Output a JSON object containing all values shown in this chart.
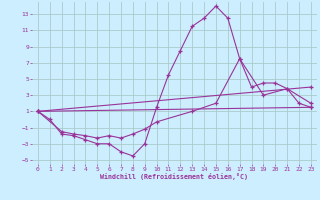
{
  "xlabel": "Windchill (Refroidissement éolien,°C)",
  "bg_color": "#cceeff",
  "line_color": "#993399",
  "grid_color": "#aacccc",
  "xlim": [
    -0.5,
    23.5
  ],
  "ylim": [
    -5.5,
    14.5
  ],
  "yticks": [
    -5,
    -3,
    -1,
    1,
    3,
    5,
    7,
    9,
    11,
    13
  ],
  "xticks": [
    0,
    1,
    2,
    3,
    4,
    5,
    6,
    7,
    8,
    9,
    10,
    11,
    12,
    13,
    14,
    15,
    16,
    17,
    18,
    19,
    20,
    21,
    22,
    23
  ],
  "lines": [
    {
      "x": [
        0,
        1,
        2,
        3,
        4,
        5,
        6,
        7,
        8,
        9,
        10,
        11,
        12,
        13,
        14,
        15,
        16,
        17,
        18,
        19,
        20,
        21,
        22,
        23
      ],
      "y": [
        1,
        0,
        -1.8,
        -2,
        -2.5,
        -3,
        -3,
        -4,
        -4.5,
        -3,
        1.5,
        5.5,
        8.5,
        11.5,
        12.5,
        14,
        12.5,
        7.5,
        4,
        4.5,
        4.5,
        3.8,
        2,
        1.5
      ]
    },
    {
      "x": [
        0,
        2,
        3,
        4,
        5,
        6,
        7,
        8,
        9,
        10,
        13,
        15,
        17,
        19,
        21,
        23
      ],
      "y": [
        1,
        -1.5,
        -1.8,
        -2,
        -2.3,
        -2,
        -2.3,
        -1.8,
        -1.2,
        -0.3,
        1.0,
        2.0,
        7.5,
        3.0,
        3.8,
        2.0
      ]
    },
    {
      "x": [
        0,
        23
      ],
      "y": [
        1,
        1.5
      ]
    },
    {
      "x": [
        0,
        23
      ],
      "y": [
        1,
        4.0
      ]
    }
  ]
}
